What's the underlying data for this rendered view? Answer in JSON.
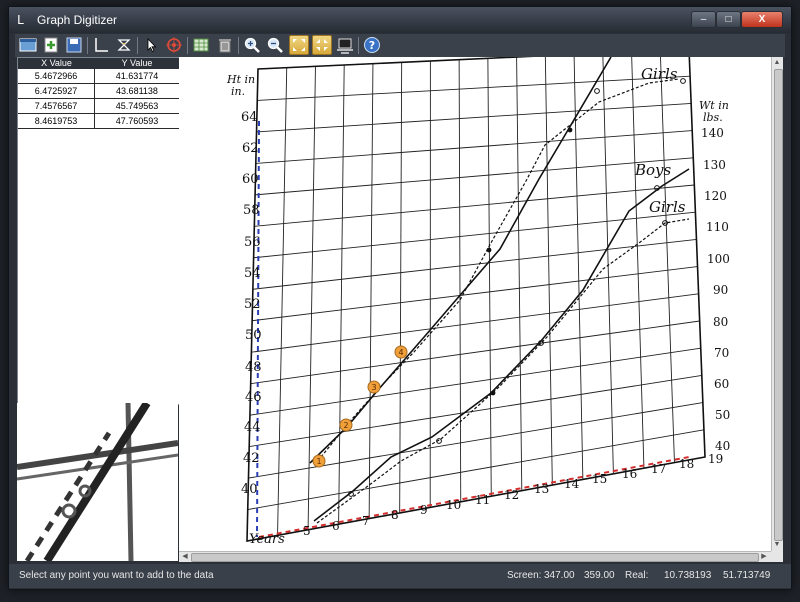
{
  "window": {
    "title": "Graph Digitizer"
  },
  "table": {
    "headers": [
      "X Value",
      "Y Value"
    ],
    "rows": [
      [
        "5.4672966",
        "41.631774"
      ],
      [
        "6.4725927",
        "43.681138"
      ],
      [
        "7.4576567",
        "45.749563"
      ],
      [
        "8.4619753",
        "47.760593"
      ]
    ]
  },
  "graph": {
    "left_axis_title_1": "Ht in",
    "left_axis_title_2": "in.",
    "right_axis_title_1": "Wt in",
    "right_axis_title_2": "lbs.",
    "x_axis_title": "Years",
    "left_ticks": [
      "40",
      "42",
      "44",
      "46",
      "48",
      "50",
      "52",
      "54",
      "56",
      "58",
      "60",
      "62",
      "64"
    ],
    "right_ticks": [
      "40",
      "50",
      "60",
      "70",
      "80",
      "90",
      "100",
      "110",
      "120",
      "130",
      "140"
    ],
    "x_ticks": [
      "5",
      "6",
      "7",
      "8",
      "9",
      "10",
      "11",
      "12",
      "13",
      "14",
      "15",
      "16",
      "17",
      "18",
      "19"
    ],
    "label_boys": "Boys",
    "label_girls_top": "Girls",
    "label_girls_bottom": "Girls",
    "markers": [
      "1",
      "2",
      "3",
      "4"
    ]
  },
  "status": {
    "message": "Select any point you want to add to the data",
    "screen_label": "Screen:",
    "screen_x": "347.00",
    "screen_y": "359.00",
    "real_label": "Real:",
    "real_x": "10.738193",
    "real_y": "51.713749"
  },
  "toolbar": [
    "new-icon",
    "open-icon",
    "save-icon",
    "axis-icon",
    "calibrate-icon",
    "select-icon",
    "target-icon",
    "table-icon",
    "delete-icon",
    "zoom-in-icon",
    "zoom-out-icon",
    "fit-icon",
    "fit-page-icon",
    "screen-capture-icon",
    "help-icon"
  ]
}
